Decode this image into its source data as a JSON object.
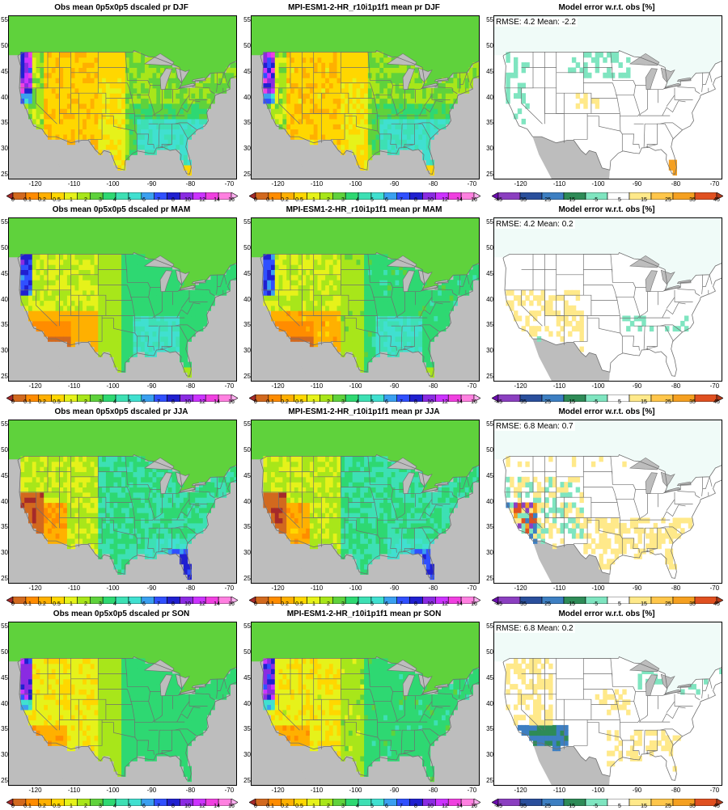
{
  "rows": [
    {
      "season": "DJF",
      "titles": [
        "Obs mean 0p5x0p5 dscaled pr DJF",
        "MPI-ESM1-2-HR_r10i1p1f1 mean pr DJF",
        "Model error w.r.t. obs [%]"
      ],
      "stats": "RMSE: 4.2  Mean: -2.2"
    },
    {
      "season": "MAM",
      "titles": [
        "Obs mean 0p5x0p5 dscaled pr MAM",
        "MPI-ESM1-2-HR_r10i1p1f1 mean pr MAM",
        "Model error w.r.t. obs [%]"
      ],
      "stats": "RMSE: 4.2  Mean: 0.2"
    },
    {
      "season": "JJA",
      "titles": [
        "Obs mean 0p5x0p5 dscaled pr JJA",
        "MPI-ESM1-2-HR_r10i1p1f1 mean pr JJA",
        "Model error w.r.t. obs [%]"
      ],
      "stats": "RMSE: 6.8  Mean: 0.7"
    },
    {
      "season": "SON",
      "titles": [
        "Obs mean 0p5x0p5 dscaled pr SON",
        "MPI-ESM1-2-HR_r10i1p1f1 mean pr SON",
        "Model error w.r.t. obs [%]"
      ],
      "stats": "RMSE: 6.8  Mean: 0.2"
    }
  ],
  "lat_ticks": [
    "55",
    "50",
    "45",
    "40",
    "35",
    "30",
    "25"
  ],
  "lon_ticks": [
    "-120",
    "-110",
    "-100",
    "-90",
    "-80",
    "-70"
  ],
  "precip_scale": {
    "labels": [
      "0",
      "0.1",
      "0.2",
      "0.5",
      "1",
      "2",
      "3",
      "4",
      "5",
      "6",
      "7",
      "8",
      "10",
      "12",
      "14",
      "16"
    ],
    "colors": [
      "#a52a2a",
      "#d2691e",
      "#ff8c00",
      "#ffb000",
      "#ffd700",
      "#e6f21a",
      "#a8e61a",
      "#5fd23c",
      "#2ed872",
      "#3de0b4",
      "#40e0d0",
      "#3aa0f0",
      "#3050ff",
      "#2020d0",
      "#8a2be2",
      "#cc33ff",
      "#f040e0",
      "#ff80e0",
      "#ffb0f0"
    ]
  },
  "error_scale": {
    "labels": [
      "-45",
      "-35",
      "-25",
      "-15",
      "-5",
      "5",
      "15",
      "25",
      "35",
      "45"
    ],
    "colors": [
      "#6a0dad",
      "#8b3fc0",
      "#2a4f9c",
      "#3d7fc2",
      "#2e8b57",
      "#7fe5c0",
      "#ffffff",
      "#ffe98a",
      "#ffc64a",
      "#f5a020",
      "#e05020",
      "#b03a1a"
    ]
  },
  "map_colors": {
    "land_gray": "#bdbdbd",
    "border": "#6f6f6f"
  }
}
